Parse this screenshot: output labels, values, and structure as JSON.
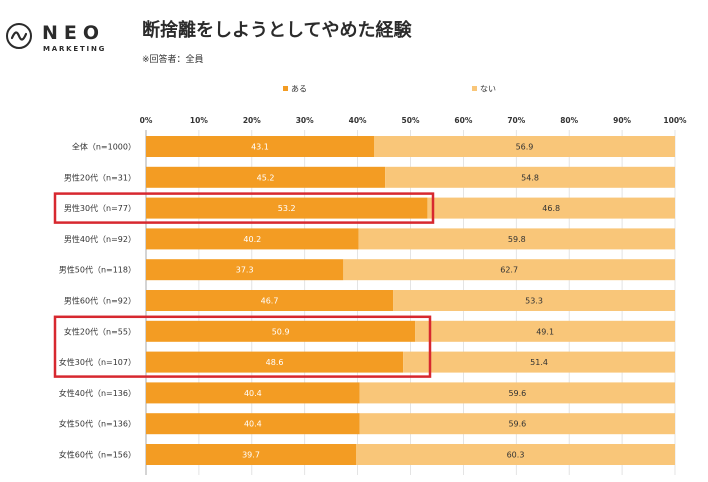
{
  "logo": {
    "word": "NEO",
    "sub": "MARKETING"
  },
  "header": {
    "title": "断捨離をしようとしてやめた経験",
    "subtitle": "※回答者：全員"
  },
  "colors": {
    "yes": "#F39C23",
    "no": "#F9C679",
    "highlight": "#D7282F"
  },
  "chart_data": {
    "type": "bar",
    "orientation": "horizontal",
    "stacked": "percent",
    "xlim": [
      0,
      100
    ],
    "ticks": [
      "0%",
      "10%",
      "20%",
      "30%",
      "40%",
      "50%",
      "60%",
      "70%",
      "80%",
      "90%",
      "100%"
    ],
    "legend_position": "top",
    "grid": true,
    "categories": [
      "全体（n=1000）",
      "男性20代（n=31）",
      "男性30代（n=77）",
      "男性40代（n=92）",
      "男性50代（n=118）",
      "男性60代（n=92）",
      "女性20代（n=55）",
      "女性30代（n=107）",
      "女性40代（n=136）",
      "女性50代（n=136）",
      "女性60代（n=156）"
    ],
    "series": [
      {
        "name": "ある",
        "values": [
          43.1,
          45.2,
          53.2,
          40.2,
          37.3,
          46.7,
          50.9,
          48.6,
          40.4,
          40.4,
          39.7
        ]
      },
      {
        "name": "ない",
        "values": [
          56.9,
          54.8,
          46.8,
          59.8,
          62.7,
          53.3,
          49.1,
          51.4,
          59.6,
          59.6,
          60.3
        ]
      }
    ],
    "highlighted_categories": [
      "男性30代（n=77）",
      "女性20代（n=55）",
      "女性30代（n=107）"
    ]
  }
}
